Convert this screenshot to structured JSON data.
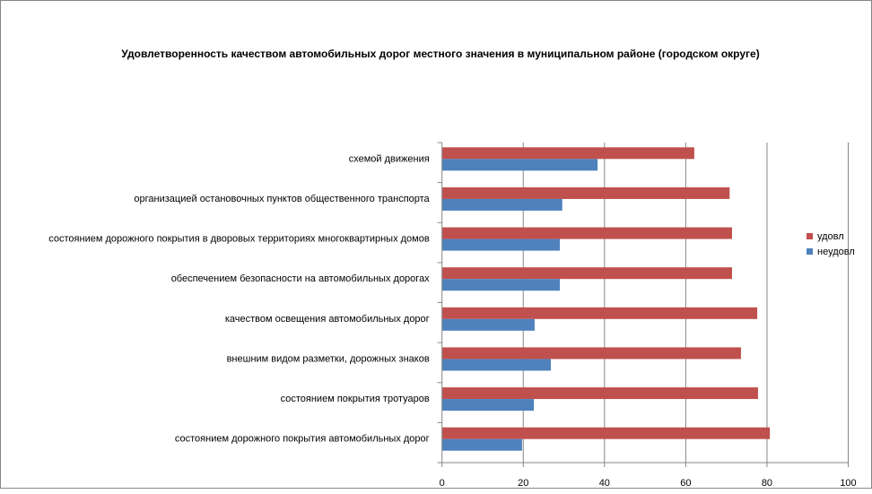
{
  "chart_data": {
    "type": "bar",
    "orientation": "horizontal",
    "title": "Удовлетворенность качеством автомобильных дорог местного значения в муниципальном районе (городском округе)",
    "categories": [
      "схемой движения",
      "организацией остановочных пунктов общественного транспорта",
      "состоянием дорожного покрытия в дворовых территориях многоквартирных домов",
      "обеспечением безопасности на автомобильных дорогах",
      "качеством освещения автомобильных дорог",
      "внешним видом разметки, дорожных знаков",
      "состоянием покрытия тротуаров",
      "состоянием дорожного покрытия автомобильных дорог"
    ],
    "series": [
      {
        "name": "удовл",
        "color": "#C0504D",
        "values": [
          62.1,
          70.8,
          71.4,
          71.4,
          77.6,
          73.6,
          77.8,
          80.7
        ]
      },
      {
        "name": "неудовл",
        "color": "#4F81BD",
        "values": [
          38.3,
          29.6,
          29.0,
          29.0,
          22.8,
          26.8,
          22.6,
          19.7
        ]
      }
    ],
    "xlim": [
      0,
      100
    ],
    "xticks": [
      "0",
      "20",
      "40",
      "60",
      "80",
      "100"
    ],
    "xlabel": "",
    "ylabel": "",
    "grid": true,
    "legend": "right"
  }
}
